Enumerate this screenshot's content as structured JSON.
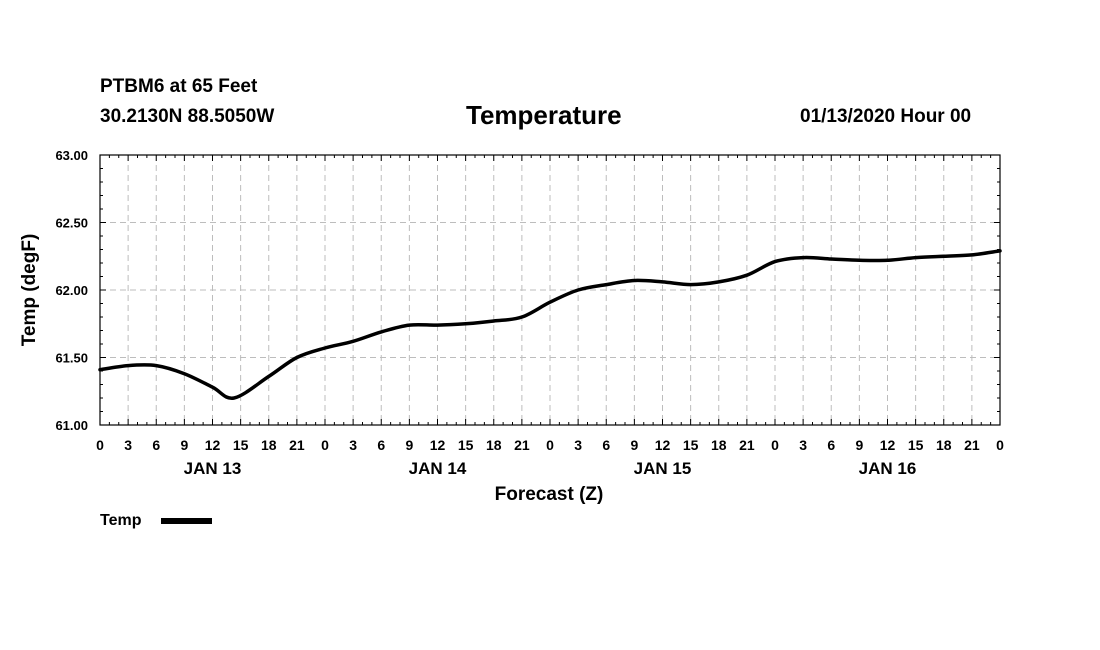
{
  "header": {
    "station": "PTBM6 at 65 Feet",
    "coords": "30.2130N 88.5050W",
    "title": "Temperature",
    "run": "01/13/2020 Hour 00"
  },
  "chart_data": {
    "type": "line",
    "title": "Temperature",
    "xlabel": "Forecast (Z)",
    "ylabel": "Temp (degF)",
    "xlim": [
      0,
      96
    ],
    "ylim": [
      61.0,
      63.0
    ],
    "grid": true,
    "y_ticks": [
      "61.00",
      "61.50",
      "62.00",
      "62.50",
      "63.00"
    ],
    "x_tick_labels": [
      "0",
      "3",
      "6",
      "9",
      "12",
      "15",
      "18",
      "21",
      "0",
      "3",
      "6",
      "9",
      "12",
      "15",
      "18",
      "21",
      "0",
      "3",
      "6",
      "9",
      "12",
      "15",
      "18",
      "21",
      "0",
      "3",
      "6",
      "9",
      "12",
      "15",
      "18",
      "21",
      "0"
    ],
    "day_labels": [
      {
        "label": "JAN 13",
        "hour": 12
      },
      {
        "label": "JAN 14",
        "hour": 36
      },
      {
        "label": "JAN 15",
        "hour": 60
      },
      {
        "label": "JAN 16",
        "hour": 84
      }
    ],
    "legend": {
      "label": "Temp",
      "position": "bottom-left"
    },
    "series": [
      {
        "name": "Temp",
        "color": "#000000",
        "x": [
          0,
          3,
          6,
          9,
          12,
          14.3,
          18,
          21,
          24,
          27,
          30,
          33,
          36,
          39,
          42,
          45,
          48,
          51,
          54,
          57,
          60,
          63,
          66,
          69,
          72,
          75,
          78,
          81,
          84,
          87,
          90,
          93,
          96
        ],
        "values": [
          61.41,
          61.44,
          61.44,
          61.38,
          61.28,
          61.2,
          61.36,
          61.5,
          61.57,
          61.62,
          61.69,
          61.74,
          61.74,
          61.75,
          61.77,
          61.8,
          61.91,
          62.0,
          62.04,
          62.07,
          62.06,
          62.04,
          62.06,
          62.11,
          62.21,
          62.24,
          62.23,
          62.22,
          62.22,
          62.24,
          62.25,
          62.26,
          62.29
        ]
      }
    ]
  }
}
